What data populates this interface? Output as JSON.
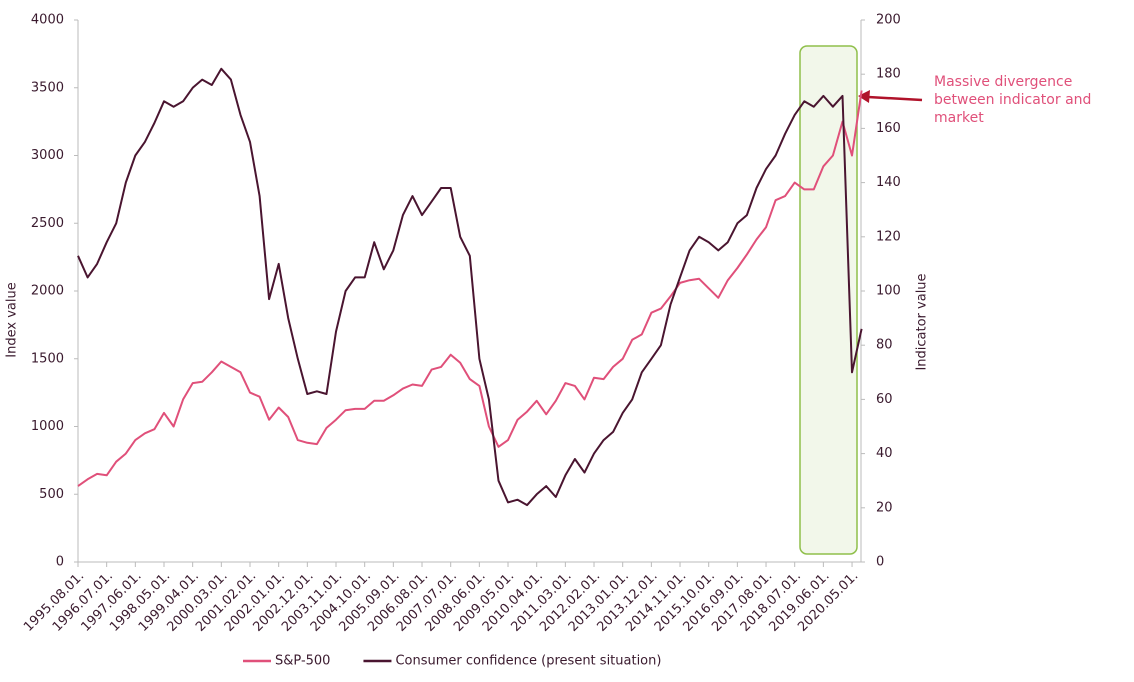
{
  "chart_data": {
    "type": "line",
    "y_label": "Index value",
    "y2_label": "Indicator value",
    "annotation": [
      "Massive divergence",
      "between indicator and",
      "market"
    ],
    "categories": [
      "1995.08.01.",
      null,
      null,
      "1996.07.01.",
      null,
      null,
      "1997.06.01.",
      null,
      null,
      "1998.05.01.",
      null,
      null,
      "1999.04.01.",
      null,
      null,
      "2000.03.01.",
      null,
      null,
      "2001.02.01.",
      null,
      null,
      "2002.01.01.",
      null,
      null,
      "2002.12.01.",
      null,
      null,
      "2003.11.01.",
      null,
      null,
      "2004.10.01.",
      null,
      null,
      "2005.09.01.",
      null,
      null,
      "2006.08.01.",
      null,
      null,
      "2007.07.01.",
      null,
      null,
      "2008.06.01.",
      null,
      null,
      "2009.05.01.",
      null,
      null,
      "2010.04.01.",
      null,
      null,
      "2011.03.01.",
      null,
      null,
      "2012.02.01.",
      null,
      null,
      "2013.01.01.",
      null,
      null,
      "2013.12.01.",
      null,
      null,
      "2014.11.01.",
      null,
      null,
      "2015.10.01.",
      null,
      null,
      "2016.09.01.",
      null,
      null,
      "2017.08.01.",
      null,
      null,
      "2018.07.01.",
      null,
      null,
      "2019.06.01.",
      null,
      null,
      "2020.05.01.",
      null
    ],
    "series": [
      {
        "name": "S&P-500",
        "color": "#e0507a",
        "values": [
          560,
          610,
          650,
          640,
          740,
          800,
          900,
          950,
          980,
          1100,
          1000,
          1200,
          1320,
          1330,
          1400,
          1480,
          1440,
          1400,
          1250,
          1220,
          1050,
          1140,
          1070,
          900,
          880,
          870,
          990,
          1050,
          1120,
          1130,
          1130,
          1190,
          1190,
          1230,
          1280,
          1310,
          1300,
          1420,
          1440,
          1530,
          1470,
          1350,
          1300,
          1000,
          850,
          900,
          1050,
          1110,
          1190,
          1090,
          1190,
          1320,
          1300,
          1200,
          1360,
          1350,
          1440,
          1500,
          1640,
          1680,
          1840,
          1870,
          1960,
          2060,
          2080,
          2090,
          2020,
          1950,
          2080,
          2170,
          2270,
          2380,
          2470,
          2670,
          2700,
          2800,
          2750,
          2750,
          2920,
          3000,
          3250,
          3000,
          3480
        ]
      },
      {
        "name": "Consumer confidence (present situation)",
        "color": "#4a1530",
        "axis": "y2",
        "values": [
          113,
          105,
          110,
          118,
          125,
          140,
          150,
          155,
          162,
          170,
          168,
          170,
          175,
          178,
          176,
          182,
          178,
          165,
          155,
          135,
          97,
          110,
          90,
          75,
          62,
          63,
          62,
          85,
          100,
          105,
          105,
          118,
          108,
          115,
          128,
          135,
          128,
          133,
          138,
          138,
          120,
          113,
          75,
          60,
          30,
          22,
          23,
          21,
          25,
          28,
          24,
          32,
          38,
          33,
          40,
          45,
          48,
          55,
          60,
          70,
          75,
          80,
          95,
          105,
          115,
          120,
          118,
          115,
          118,
          125,
          128,
          138,
          145,
          150,
          158,
          165,
          170,
          168,
          172,
          168,
          172,
          70,
          86
        ]
      }
    ],
    "ylim": [
      0,
      4000
    ],
    "yticks": [
      0,
      500,
      1000,
      1500,
      2000,
      2500,
      3000,
      3500,
      4000
    ],
    "y2lim": [
      0,
      200
    ],
    "y2ticks": [
      0,
      20,
      40,
      60,
      80,
      100,
      120,
      140,
      160,
      180,
      200
    ],
    "grid": false
  }
}
